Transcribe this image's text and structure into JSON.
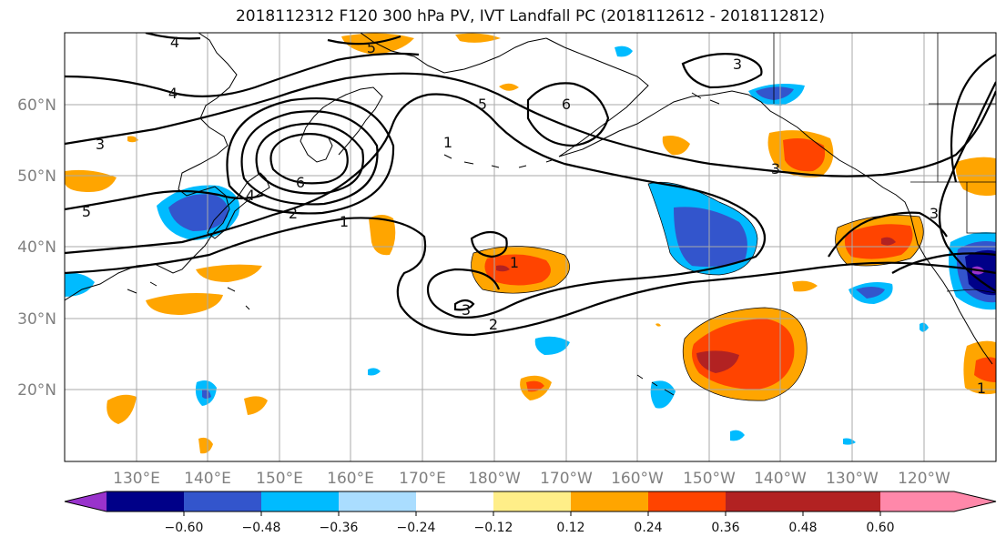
{
  "title": "2018112312 F120 300 hPa PV, IVT Landfall PC (2018112612 - 2018112812)",
  "map": {
    "lat_labels": [
      "60°N",
      "50°N",
      "40°N",
      "30°N",
      "20°N"
    ],
    "lon_labels": [
      "130°E",
      "140°E",
      "150°E",
      "160°E",
      "170°E",
      "180°W",
      "170°W",
      "160°W",
      "150°W",
      "140°W",
      "130°W",
      "120°W"
    ],
    "pv_contour_labels": [
      "4",
      "5",
      "4",
      "3",
      "6",
      "5",
      "6",
      "1",
      "4",
      "2",
      "1",
      "5",
      "3",
      "3",
      "1",
      "3",
      "2",
      "3",
      "1"
    ],
    "gridline_color": "#aaaaaa",
    "coastline_color": "#000000"
  },
  "colorbar": {
    "colors": [
      "#9933cc",
      "#000088",
      "#3355cc",
      "#00bbff",
      "#aaddff",
      "#ffffff",
      "#ffee88",
      "#ffa500",
      "#ff4400",
      "#b22222",
      "#ff88aa"
    ],
    "tick_labels": [
      "−0.60",
      "−0.48",
      "−0.36",
      "−0.24",
      "−0.12",
      "0.12",
      "0.24",
      "0.36",
      "0.48",
      "0.60"
    ]
  }
}
